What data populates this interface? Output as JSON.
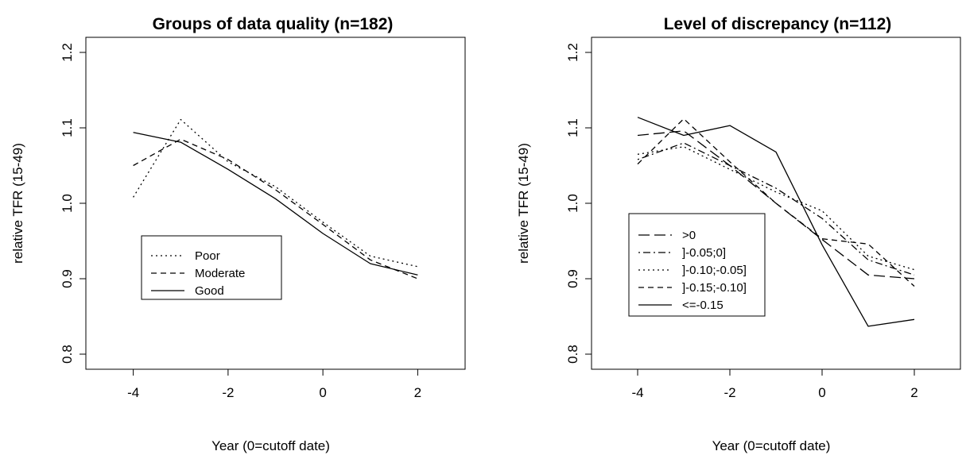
{
  "chart_data": [
    {
      "type": "line",
      "title": "Groups of data quality (n=182)",
      "xlabel": "Year (0=cutoff date)",
      "ylabel": "relative TFR (15-49)",
      "xlim": [
        -5,
        3
      ],
      "ylim": [
        0.78,
        1.22
      ],
      "xticks": [
        -4,
        -2,
        0,
        2
      ],
      "yticks": [
        0.8,
        0.9,
        1.0,
        1.1,
        1.2
      ],
      "xtick_labels": [
        "-4",
        "-2",
        "0",
        "2"
      ],
      "ytick_labels": [
        "0.8",
        "0.9",
        "1.0",
        "1.1",
        "1.2"
      ],
      "legend_position": "center-left",
      "x": [
        -4,
        -3,
        -2,
        -1,
        0,
        1,
        2
      ],
      "series": [
        {
          "name": "Poor",
          "dash": "dotted",
          "values": [
            1.008,
            1.111,
            1.055,
            1.022,
            0.975,
            0.93,
            0.916
          ]
        },
        {
          "name": "Moderate",
          "dash": "dashed",
          "values": [
            1.05,
            1.085,
            1.058,
            1.018,
            0.972,
            0.925,
            0.9
          ]
        },
        {
          "name": "Good",
          "dash": "solid",
          "values": [
            1.094,
            1.081,
            1.045,
            1.006,
            0.96,
            0.92,
            0.905
          ]
        }
      ]
    },
    {
      "type": "line",
      "title": "Level of discrepancy (n=112)",
      "xlabel": "Year (0=cutoff date)",
      "ylabel": "relative TFR (15-49)",
      "xlim": [
        -5,
        3
      ],
      "ylim": [
        0.78,
        1.22
      ],
      "xticks": [
        -4,
        -2,
        0,
        2
      ],
      "yticks": [
        0.8,
        0.9,
        1.0,
        1.1,
        1.2
      ],
      "xtick_labels": [
        "-4",
        "-2",
        "0",
        "2"
      ],
      "ytick_labels": [
        "0.8",
        "0.9",
        "1.0",
        "1.1",
        "1.2"
      ],
      "legend_position": "center-left",
      "x": [
        -4,
        -3,
        -2,
        -1,
        0,
        1,
        2
      ],
      "series": [
        {
          "name": ">0",
          "dash": "longdash",
          "values": [
            1.09,
            1.096,
            1.05,
            1.0,
            0.952,
            0.905,
            0.9
          ]
        },
        {
          "name": "]-0.05;0]",
          "dash": "dotdash",
          "values": [
            1.058,
            1.08,
            1.05,
            1.02,
            0.98,
            0.925,
            0.905
          ]
        },
        {
          "name": "]-0.10;-0.05]",
          "dash": "dotted",
          "values": [
            1.065,
            1.075,
            1.045,
            1.015,
            0.99,
            0.93,
            0.912
          ]
        },
        {
          "name": "]-0.15;-0.10]",
          "dash": "dashed",
          "values": [
            1.052,
            1.112,
            1.055,
            1.0,
            0.953,
            0.946,
            0.89
          ]
        },
        {
          "name": "<=-0.15",
          "dash": "solid",
          "values": [
            1.114,
            1.09,
            1.103,
            1.068,
            0.945,
            0.837,
            0.846
          ]
        }
      ]
    }
  ]
}
